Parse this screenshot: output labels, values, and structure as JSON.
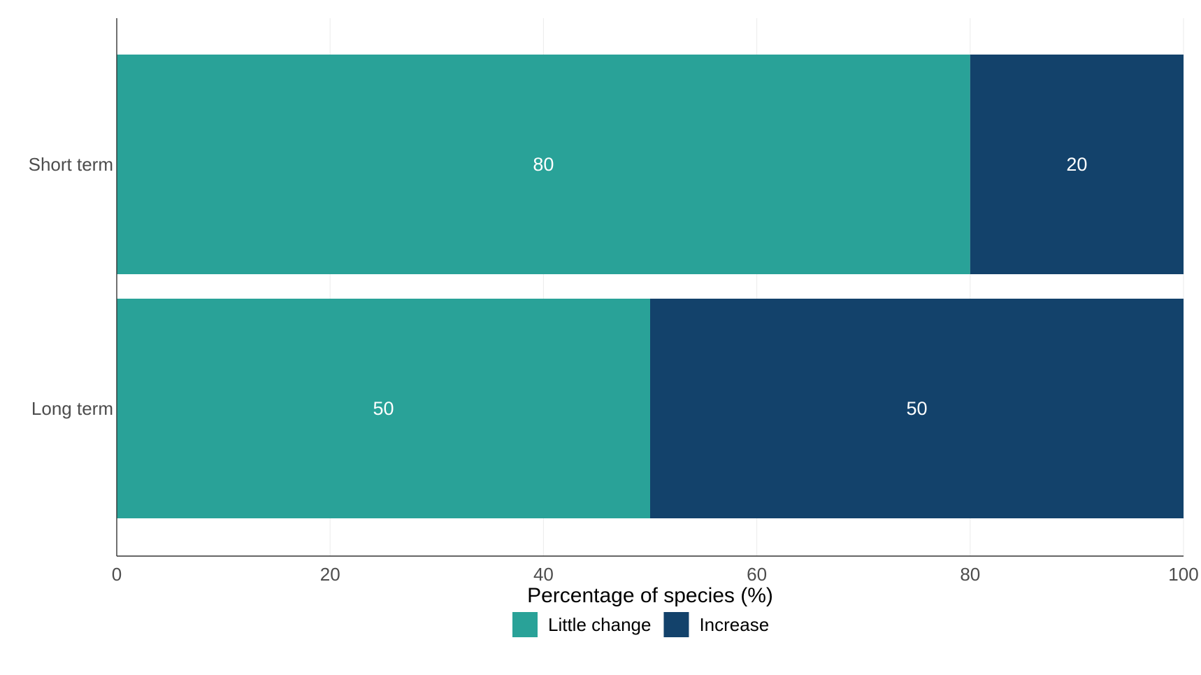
{
  "chart_data": {
    "type": "bar",
    "orientation": "horizontal",
    "stacked": true,
    "title": "",
    "xlabel": "Percentage of species (%)",
    "ylabel": "",
    "xlim": [
      0,
      100
    ],
    "x_ticks": [
      0,
      20,
      40,
      60,
      80,
      100
    ],
    "categories": [
      "Short term",
      "Long term"
    ],
    "series": [
      {
        "name": "Little change",
        "color": "#29A298",
        "values": [
          80,
          50
        ]
      },
      {
        "name": "Increase",
        "color": "#13426B",
        "values": [
          20,
          50
        ]
      }
    ],
    "data_labels": true,
    "grid": "vertical",
    "legend_position": "bottom"
  }
}
